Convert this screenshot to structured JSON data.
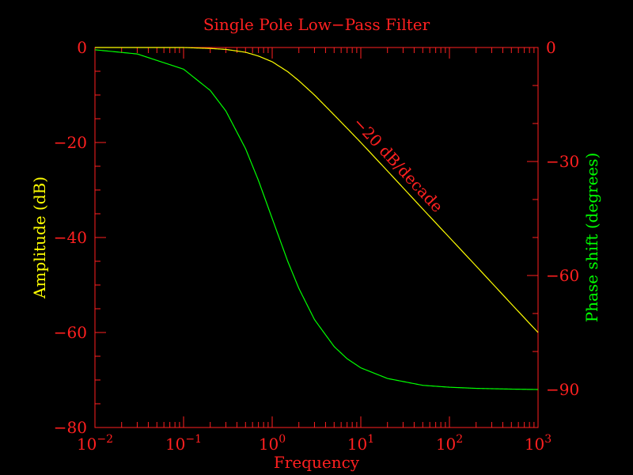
{
  "chart_data": {
    "type": "line",
    "title": "Single Pole Low−Pass Filter",
    "xlabel": "Frequency",
    "ylabel_left": "Amplitude (dB)",
    "ylabel_right": "Phase shift (degrees)",
    "x_scale": "log",
    "xlim": [
      0.01,
      1000
    ],
    "ylim_left": [
      -80,
      0
    ],
    "ylim_right": [
      -100,
      0
    ],
    "x_ticks": [
      {
        "base": "10",
        "exp": "−2"
      },
      {
        "base": "10",
        "exp": "−1"
      },
      {
        "base": "10",
        "exp": "0"
      },
      {
        "base": "10",
        "exp": "1"
      },
      {
        "base": "10",
        "exp": "2"
      },
      {
        "base": "10",
        "exp": "3"
      }
    ],
    "y_ticks_left": [
      "0",
      "−20",
      "−40",
      "−60",
      "−80"
    ],
    "y_ticks_right": [
      "0",
      "−30",
      "−60",
      "−90"
    ],
    "annotation": "−20 dB/decade",
    "colors": {
      "axis": "#ff2020",
      "amplitude": "#ffff00",
      "phase": "#00ff00",
      "background": "#000000"
    },
    "series": [
      {
        "axis": "left",
        "x": [
          0.01,
          0.03,
          0.1,
          0.2,
          0.3,
          0.5,
          0.7,
          1,
          1.5,
          2,
          3,
          5,
          7,
          10,
          20,
          50,
          100,
          200,
          500,
          1000
        ],
        "values": [
          0,
          0,
          0,
          -0.2,
          -0.4,
          -1.0,
          -1.8,
          -3.0,
          -5.1,
          -7.0,
          -10.0,
          -14.2,
          -17.0,
          -20.0,
          -26.0,
          -34.0,
          -40.0,
          -46.0,
          -54.0,
          -60.0
        ]
      },
      {
        "axis": "right",
        "x": [
          0.01,
          0.03,
          0.1,
          0.2,
          0.3,
          0.5,
          0.7,
          1,
          1.5,
          2,
          3,
          5,
          7,
          10,
          20,
          50,
          100,
          200,
          500,
          1000
        ],
        "values": [
          -0.6,
          -1.7,
          -5.7,
          -11.3,
          -16.7,
          -26.6,
          -35.0,
          -45.0,
          -56.3,
          -63.4,
          -71.6,
          -78.7,
          -81.9,
          -84.3,
          -87.1,
          -88.9,
          -89.4,
          -89.7,
          -89.9,
          -90.0
        ]
      }
    ]
  }
}
